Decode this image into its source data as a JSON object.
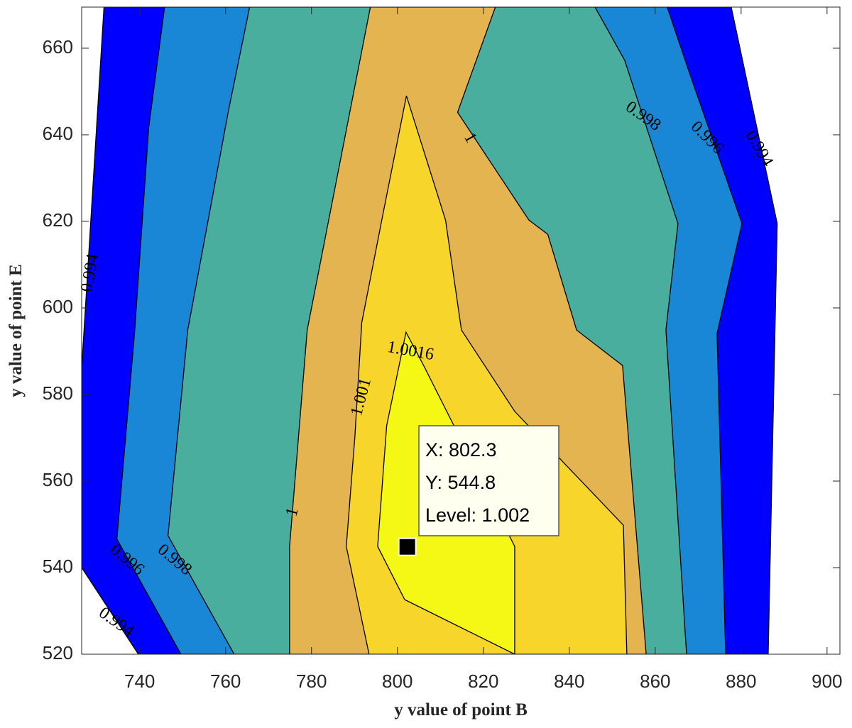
{
  "chart_data": {
    "type": "contour",
    "x_label": "y value of point B",
    "y_label": "y value of point E",
    "xlim": [
      726.5,
      903
    ],
    "ylim": [
      520,
      669.5
    ],
    "xticks": [
      740,
      760,
      780,
      800,
      820,
      840,
      860,
      880,
      900
    ],
    "yticks": [
      520,
      540,
      560,
      580,
      600,
      620,
      640,
      660
    ],
    "contours": [
      {
        "level": 0.994,
        "color": "#0000ff",
        "polygon": [
          [
            731.7,
            669.5
          ],
          [
            877.7,
            669.5
          ],
          [
            888.4,
            619.5
          ],
          [
            886.3,
            520
          ],
          [
            739.7,
            520
          ],
          [
            726.5,
            540
          ],
          [
            726.5,
            585.9
          ]
        ]
      },
      {
        "level": 0.996,
        "color": "#1a86d6",
        "polygon": [
          [
            745.8,
            669.5
          ],
          [
            862.8,
            669.5
          ],
          [
            867.8,
            654.8
          ],
          [
            880.2,
            619.5
          ],
          [
            874.4,
            594.1
          ],
          [
            876.4,
            520
          ],
          [
            749.6,
            520
          ],
          [
            734.7,
            546.6
          ],
          [
            738.8,
            594.1
          ],
          [
            742.1,
            641.6
          ]
        ]
      },
      {
        "level": 0.998,
        "color": "#4aae9e",
        "polygon": [
          [
            765.6,
            669.5
          ],
          [
            846.0,
            669.5
          ],
          [
            852.9,
            657.2
          ],
          [
            865.3,
            619.5
          ],
          [
            862.5,
            594.9
          ],
          [
            867.3,
            520
          ],
          [
            762.0,
            520
          ],
          [
            746.6,
            547.4
          ],
          [
            751.2,
            594.9
          ],
          [
            760.7,
            645.7
          ]
        ]
      },
      {
        "level": 1,
        "color": "#e3b450",
        "polygon": [
          [
            793.7,
            669.5
          ],
          [
            822.8,
            669.5
          ],
          [
            814.0,
            645.2
          ],
          [
            830.6,
            620.3
          ],
          [
            835.0,
            617.0
          ],
          [
            841.7,
            594.9
          ],
          [
            852.4,
            586.7
          ],
          [
            857.9,
            520
          ],
          [
            774.9,
            520
          ],
          [
            774.9,
            544.9
          ],
          [
            779.0,
            594.9
          ]
        ]
      },
      {
        "level": 1.001,
        "color": "#f8d52b",
        "polygon": [
          [
            802.1,
            649.0
          ],
          [
            811.2,
            620.3
          ],
          [
            814.9,
            594.9
          ],
          [
            827.3,
            576.1
          ],
          [
            852.6,
            549.8
          ],
          [
            853.4,
            520
          ],
          [
            793.4,
            520
          ],
          [
            788.1,
            544.9
          ],
          [
            790.1,
            570.3
          ],
          [
            791.7,
            596.6
          ],
          [
            796.7,
            622.0
          ]
        ]
      },
      {
        "level": 1.0016,
        "color": "#f5f714",
        "polygon": [
          [
            802.0,
            594.4
          ],
          [
            806.1,
            586.7
          ],
          [
            827.3,
            544.9
          ],
          [
            827.3,
            520
          ],
          [
            801.7,
            532.6
          ],
          [
            795.4,
            544.9
          ],
          [
            797.5,
            572.8
          ]
        ]
      }
    ],
    "datatip": {
      "x": 802.3,
      "y": 544.8,
      "lines": [
        "X: 802.3",
        "Y: 544.8",
        "Level: 1.002"
      ]
    }
  }
}
